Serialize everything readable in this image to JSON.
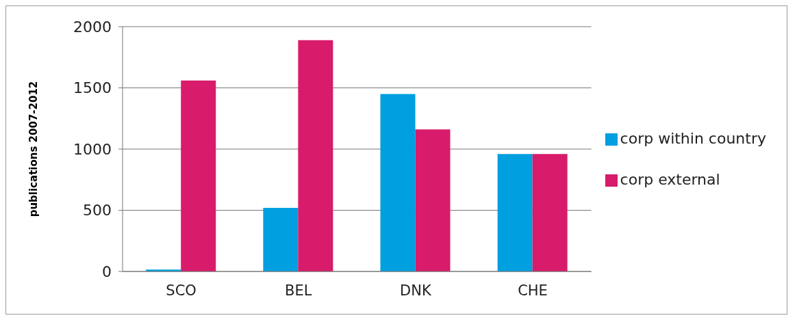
{
  "chart_data": {
    "type": "bar",
    "ylabel": "publications 2007-2012",
    "categories": [
      "SCO",
      "BEL",
      "DNK",
      "CHE"
    ],
    "series": [
      {
        "name": "corp within country",
        "color": "#009fdf",
        "values": [
          15,
          520,
          1450,
          960
        ]
      },
      {
        "name": "corp external",
        "color": "#d81b6a",
        "values": [
          1560,
          1890,
          1160,
          960
        ]
      }
    ],
    "ylim": [
      0,
      2000
    ],
    "yticks": [
      0,
      500,
      1000,
      1500,
      2000
    ],
    "grid": "y",
    "legend": "right"
  }
}
